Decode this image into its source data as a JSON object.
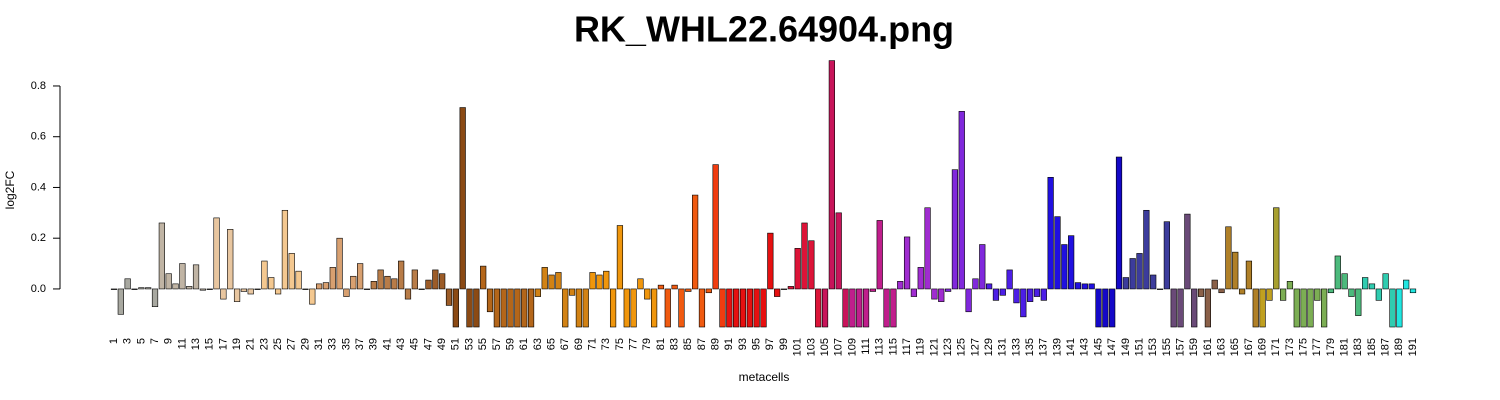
{
  "chart_data": {
    "type": "bar",
    "title": "RK_WHL22.64904.png",
    "xlabel": "metacells",
    "ylabel": "log2FC",
    "ylim": [
      -0.15,
      0.9
    ],
    "yticks": [
      {
        "value": 0,
        "label": "0.0"
      },
      0.2,
      0.4,
      0.6,
      0.8
    ],
    "categories": [
      "1",
      null,
      "3",
      null,
      "5",
      null,
      "7",
      null,
      "9",
      null,
      "11",
      null,
      "13",
      null,
      "15",
      null,
      "17",
      null,
      "19",
      null,
      "21",
      null,
      "23",
      null,
      "25",
      null,
      "27",
      null,
      "29",
      null,
      "31",
      null,
      "33",
      null,
      "35",
      null,
      "37",
      null,
      "39",
      null,
      "41",
      null,
      "43",
      null,
      "45",
      null,
      "47",
      null,
      "49",
      null,
      "51",
      null,
      "53",
      null,
      "55",
      null,
      "57",
      null,
      "59",
      null,
      "61",
      null,
      "63",
      null,
      "65",
      null,
      "67",
      null,
      "69",
      null,
      "71",
      null,
      "73",
      null,
      "75",
      null,
      "77",
      null,
      "79",
      null,
      "81",
      null,
      "83",
      null,
      "85",
      null,
      "87",
      null,
      "89",
      null,
      "91",
      null,
      "93",
      null,
      "95",
      null,
      "97",
      null,
      "99",
      null,
      "101",
      null,
      "103",
      null,
      "105",
      null,
      "107",
      null,
      "109",
      null,
      "111",
      null,
      "113",
      null,
      "115",
      null,
      "117",
      null,
      "119",
      null,
      "121",
      null,
      "123",
      null,
      "125",
      null,
      "127",
      null,
      "129",
      null,
      "131",
      null,
      "133",
      null,
      "135",
      null,
      "137",
      null,
      "139",
      null,
      "141",
      null,
      "143",
      null,
      "145",
      null,
      "147",
      null,
      "149",
      null,
      "151",
      null,
      "153",
      null,
      "155",
      null,
      "157",
      null,
      "159",
      null,
      "161",
      null,
      "163",
      null,
      "165",
      null,
      "167",
      null,
      "169",
      null,
      "171",
      null,
      "173",
      null,
      "175",
      null,
      "177",
      null,
      "179",
      null,
      "181",
      null,
      "183",
      null,
      "185",
      null,
      "187",
      null,
      "189",
      null,
      "191"
    ],
    "values": [
      0,
      -0.1,
      0.04,
      0,
      0.005,
      0.005,
      -0.07,
      0.26,
      0.06,
      0.02,
      0.1,
      0.01,
      0.095,
      -0.005,
      0,
      0.28,
      -0.04,
      0.235,
      -0.05,
      -0.01,
      -0.02,
      0,
      0.11,
      0.045,
      -0.02,
      0.31,
      0.14,
      0.07,
      0,
      -0.06,
      0.02,
      0.025,
      0.085,
      0.2,
      -0.03,
      0.05,
      0.1,
      0,
      0.03,
      0.075,
      0.05,
      0.04,
      0.11,
      -0.04,
      0.075,
      0,
      0.035,
      0.075,
      0.06,
      -0.065,
      -0.15,
      0.715,
      -0.15,
      -0.15,
      0.09,
      -0.09,
      -0.15,
      -0.15,
      -0.15,
      -0.15,
      -0.15,
      -0.15,
      -0.03,
      0.085,
      0.055,
      0.065,
      -0.15,
      -0.025,
      -0.15,
      -0.15,
      0.065,
      0.055,
      0.07,
      -0.15,
      0.25,
      -0.15,
      -0.15,
      0.04,
      -0.04,
      -0.15,
      0.015,
      -0.15,
      0.015,
      -0.15,
      -0.01,
      0.37,
      -0.15,
      -0.015,
      0.49,
      -0.15,
      -0.15,
      -0.15,
      -0.15,
      -0.15,
      -0.15,
      -0.15,
      0.22,
      -0.03,
      0,
      0.01,
      0.16,
      0.26,
      0.19,
      -0.15,
      -0.15,
      0.9,
      0.3,
      -0.15,
      -0.15,
      -0.15,
      -0.15,
      -0.01,
      0.27,
      -0.15,
      -0.15,
      0.03,
      0.205,
      -0.03,
      0.085,
      0.32,
      -0.04,
      -0.05,
      -0.01,
      0.47,
      0.7,
      -0.09,
      0.04,
      0.175,
      0.02,
      -0.045,
      -0.025,
      0.075,
      -0.055,
      -0.11,
      -0.05,
      -0.03,
      -0.045,
      0.44,
      0.285,
      0.175,
      0.21,
      0.025,
      0.02,
      0.02,
      -0.15,
      -0.15,
      -0.15,
      0.52,
      0.045,
      0.12,
      0.14,
      0.31,
      0.055,
      0,
      0.265,
      -0.15,
      -0.15,
      0.295,
      -0.15,
      -0.03,
      -0.15,
      0.035,
      -0.015,
      0.245,
      0.145,
      -0.02,
      0.11,
      -0.15,
      -0.15,
      -0.045,
      0.32,
      -0.045,
      0.03,
      -0.15,
      -0.15,
      -0.15,
      -0.045,
      -0.15,
      -0.015,
      0.13,
      0.06,
      -0.03,
      -0.105,
      0.045,
      0.02,
      -0.045,
      0.06,
      -0.15,
      -0.15,
      0.035,
      -0.015
    ],
    "colors": [
      "#a8a8a0",
      "#a8a8a0",
      "#a8a8a0",
      "#a8a8a0",
      "#a8a8a0",
      "#a8a8a0",
      "#a8a8a0",
      "#c0b4a4",
      "#c0b4a4",
      "#c0b4a4",
      "#c0b4a4",
      "#c0b4a4",
      "#c0b4a4",
      "#c0b4a4",
      "#e8c6a0",
      "#e8c6a0",
      "#e8c6a0",
      "#e8c6a0",
      "#e8c6a0",
      "#e8c6a0",
      "#e8c6a0",
      "#e8c6a0",
      "#f4c890",
      "#f4c890",
      "#f4c890",
      "#f4c890",
      "#f4c890",
      "#f4c890",
      "#f4c890",
      "#f4c890",
      "#d8a070",
      "#d8a070",
      "#d8a070",
      "#d8a070",
      "#d8a070",
      "#d8a070",
      "#d8a070",
      "#b87c48",
      "#b87c48",
      "#b87c48",
      "#b87c48",
      "#b87c48",
      "#b87c48",
      "#b87c48",
      "#b87c48",
      "#9c5c28",
      "#9c5c28",
      "#9c5c28",
      "#9c5c28",
      "#9c5c28",
      "#8b4a14",
      "#8b4a14",
      "#8b4a14",
      "#8b4a14",
      "#b4661a",
      "#b4661a",
      "#b4661a",
      "#b4661a",
      "#b4661a",
      "#b4661a",
      "#b4661a",
      "#b4661a",
      "#d28214",
      "#d28214",
      "#d28214",
      "#d28214",
      "#d28214",
      "#d28214",
      "#d28214",
      "#d28214",
      "#f0960c",
      "#f0960c",
      "#f0960c",
      "#f0960c",
      "#f0960c",
      "#f0960c",
      "#f0960c",
      "#f0960c",
      "#f0960c",
      "#f0960c",
      "#f05a10",
      "#f05a10",
      "#f05a10",
      "#f05a10",
      "#f05a10",
      "#f05a10",
      "#f05a10",
      "#f05a10",
      "#f03c10",
      "#f03c10",
      "#e61010",
      "#e61010",
      "#e61010",
      "#e61010",
      "#e61010",
      "#e61010",
      "#e61010",
      "#e61010",
      "#dc1438",
      "#dc1438",
      "#dc1438",
      "#dc1438",
      "#dc1438",
      "#dc1438",
      "#c8145a",
      "#c8145a",
      "#c8145a",
      "#c8145a",
      "#c01e8c",
      "#c01e8c",
      "#c01e8c",
      "#c01e8c",
      "#c01e8c",
      "#c01e8c",
      "#c01e8c",
      "#a02cd0",
      "#a02cd0",
      "#a02cd0",
      "#a02cd0",
      "#a02cd0",
      "#a02cd0",
      "#a02cd0",
      "#8028dc",
      "#8028dc",
      "#8028dc",
      "#8028dc",
      "#8028dc",
      "#8028dc",
      "#4c1ee6",
      "#4c1ee6",
      "#4c1ee6",
      "#4c1ee6",
      "#4c1ee6",
      "#4c1ee6",
      "#4c1ee6",
      "#4c1ee6",
      "#4c1ee6",
      "#2010e0",
      "#2010e0",
      "#2010e0",
      "#2010e0",
      "#2010e0",
      "#2010e0",
      "#2010e0",
      "#1408c8",
      "#1408c8",
      "#1408c8",
      "#1408c8",
      "#3c3c9c",
      "#3c3c9c",
      "#3c3c9c",
      "#3c3c9c",
      "#3c3c9c",
      "#3c3c9c",
      "#3c3c9c",
      "#6a4a78",
      "#6a4a78",
      "#6a4a78",
      "#6a4a78",
      "#8a6048",
      "#8a6048",
      "#8a6048",
      "#8a6048",
      "#b08028",
      "#b08028",
      "#b08028",
      "#b08028",
      "#b08028",
      "#c0a020",
      "#c0a020",
      "#a8a030",
      "#7cae54",
      "#7cae54",
      "#7cae54",
      "#7cae54",
      "#7cae54",
      "#7cae54",
      "#7cae54",
      "#4cba7c",
      "#4cba7c",
      "#4cba7c",
      "#4cba7c",
      "#4cba7c",
      "#30ccb0",
      "#30ccb0",
      "#30ccb0",
      "#30ccb0",
      "#30ccb0",
      "#20e6e0",
      "#20e6e0",
      "#20e6e0"
    ]
  }
}
